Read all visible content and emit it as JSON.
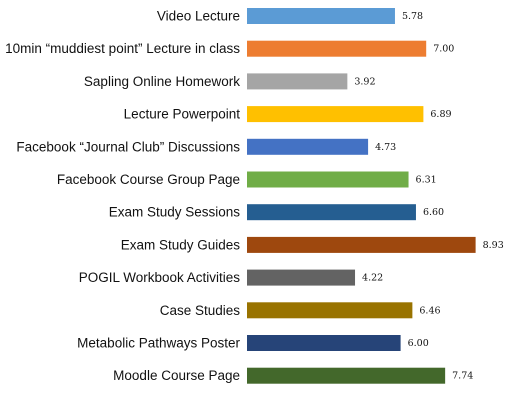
{
  "chart_data": {
    "type": "bar",
    "orientation": "horizontal",
    "title": "",
    "xlabel": "",
    "ylabel": "",
    "xlim": [
      0,
      9.5
    ],
    "grid": false,
    "legend": "none",
    "categories": [
      "Video Lecture",
      "10min “muddiest point” Lecture in class",
      "Sapling Online Homework",
      "Lecture Powerpoint",
      "Facebook “Journal Club” Discussions",
      "Facebook Course Group Page",
      "Exam Study Sessions",
      "Exam Study Guides",
      "POGIL Workbook Activities",
      "Case Studies",
      "Metabolic Pathways Poster",
      "Moodle Course Page"
    ],
    "values": [
      5.78,
      7.0,
      3.92,
      6.89,
      4.73,
      6.31,
      6.6,
      8.93,
      4.22,
      6.46,
      6.0,
      7.74
    ],
    "value_labels": [
      "5.78",
      "7.00",
      "3.92",
      "6.89",
      "4.73",
      "6.31",
      "6.60",
      "8.93",
      "4.22",
      "6.46",
      "6.00",
      "7.74"
    ],
    "colors": [
      "#5B9BD5",
      "#ED7D31",
      "#A5A5A5",
      "#FFC000",
      "#4472C4",
      "#70AD47",
      "#255E91",
      "#9E480E",
      "#636363",
      "#997300",
      "#264478",
      "#43682B"
    ]
  }
}
